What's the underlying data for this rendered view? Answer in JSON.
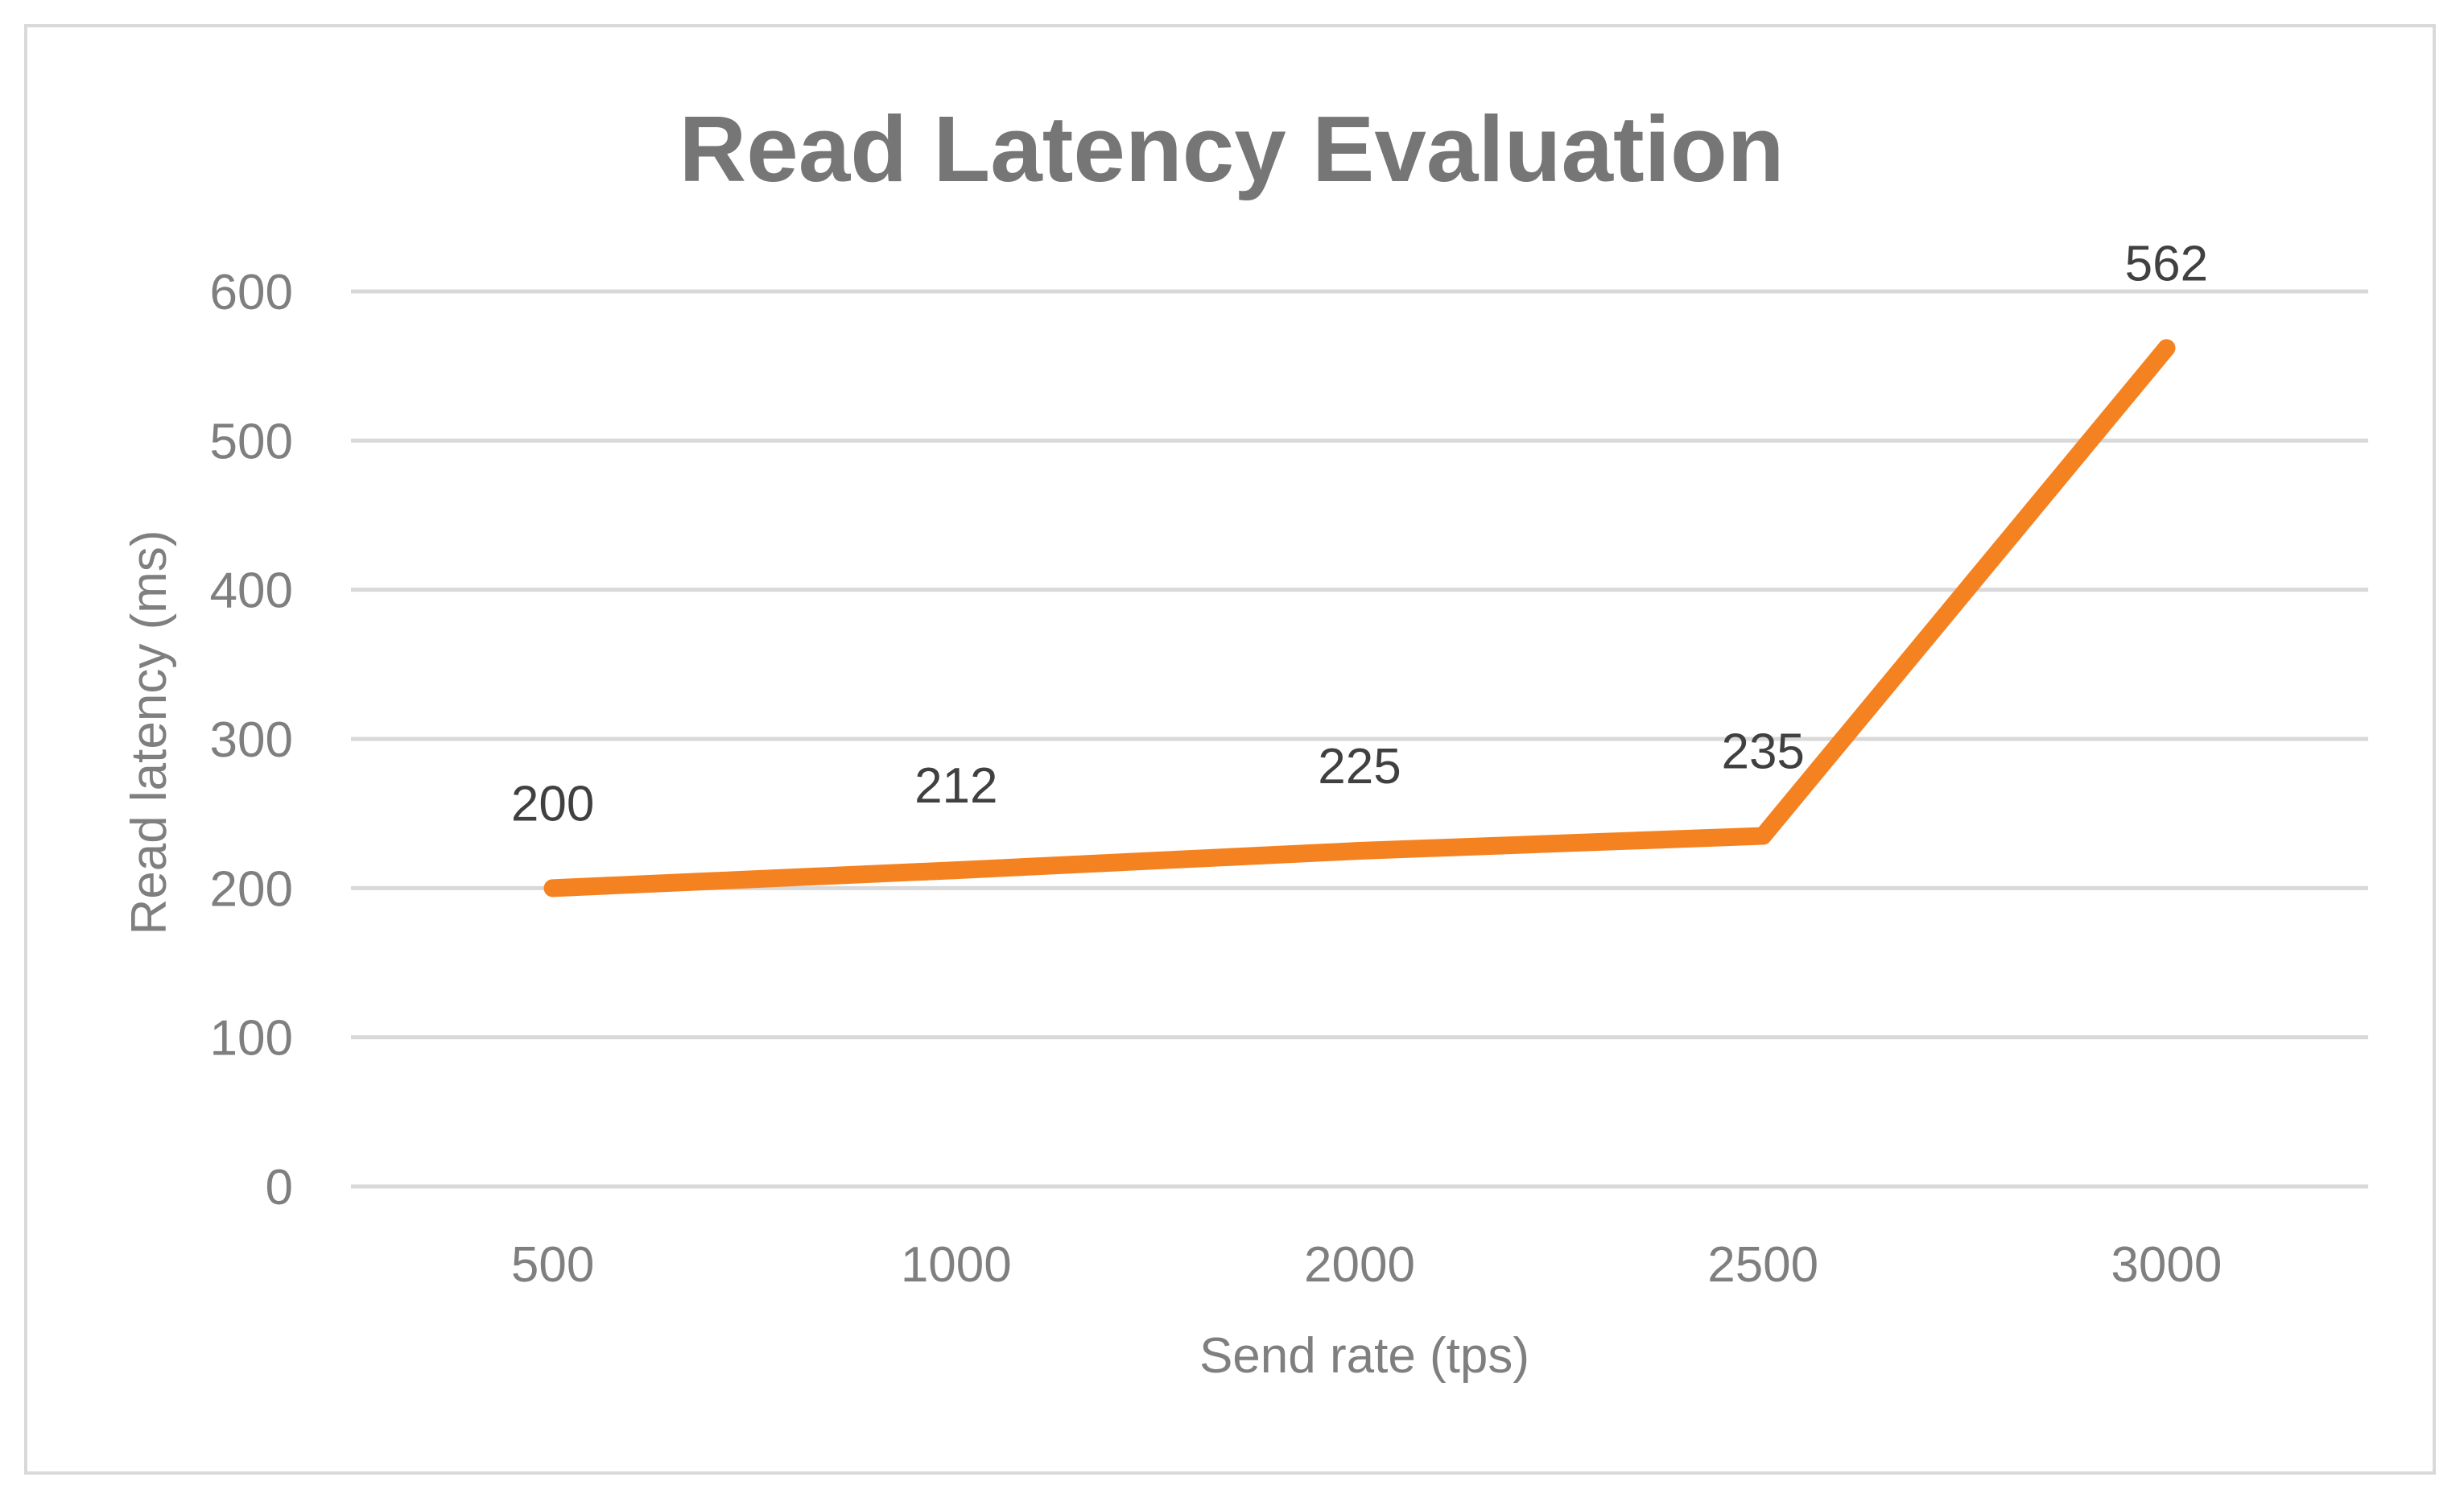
{
  "chart_data": {
    "type": "line",
    "title": "Read Latency Evaluation",
    "xlabel": "Send rate (tps)",
    "ylabel": "Read latency (ms)",
    "categories": [
      "500",
      "1000",
      "2000",
      "2500",
      "3000"
    ],
    "series": [
      {
        "values": [
          200,
          212,
          225,
          235,
          562
        ],
        "color": "#f58220"
      }
    ],
    "data_labels": [
      "200",
      "212",
      "225",
      "235",
      "562"
    ],
    "ylim": [
      0,
      600
    ],
    "yticks": [
      0,
      100,
      200,
      300,
      400,
      500,
      600
    ],
    "ytick_labels": [
      "0",
      "100",
      "200",
      "300",
      "400",
      "500",
      "600"
    ],
    "grid": true,
    "legend": "none",
    "colors": {
      "grid": "#d9d9d9",
      "text": "#7f7f7f",
      "title": "#767676",
      "border": "#d9d9d9"
    }
  }
}
